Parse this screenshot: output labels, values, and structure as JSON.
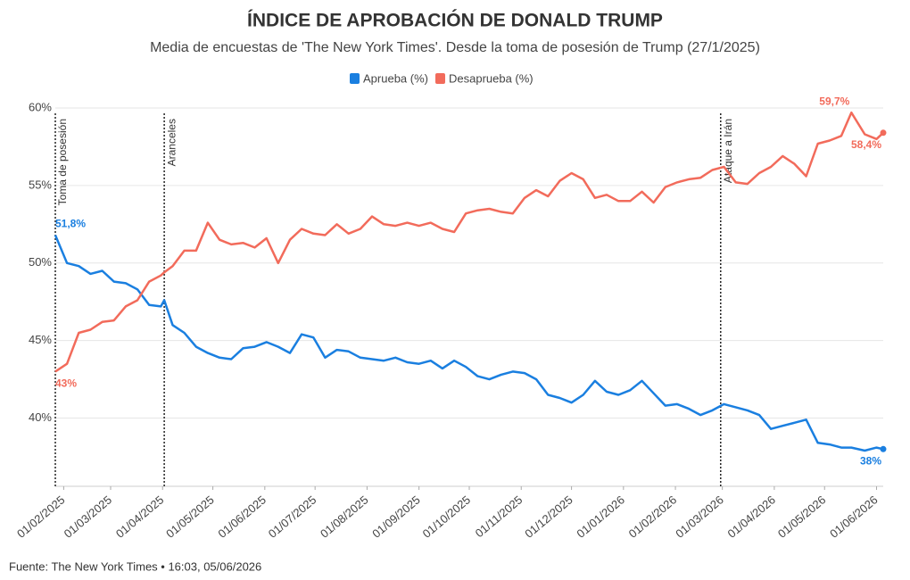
{
  "chart_data": {
    "type": "line",
    "title": "ÍNDICE DE APROBACIÓN DE DONALD TRUMP",
    "subtitle": "Media de encuestas de 'The New York Times'. Desde la toma de posesión de Trump (27/1/2025)",
    "source": "Fuente: The New York Times • 16:03, 05/06/2026",
    "legend": "top",
    "x": [
      "2025-01-27",
      "2025-02-03",
      "2025-02-10",
      "2025-02-17",
      "2025-02-24",
      "2025-03-03",
      "2025-03-10",
      "2025-03-17",
      "2025-03-24",
      "2025-03-31",
      "2025-04-02",
      "2025-04-07",
      "2025-04-14",
      "2025-04-21",
      "2025-04-28",
      "2025-05-05",
      "2025-05-12",
      "2025-05-19",
      "2025-05-26",
      "2025-06-02",
      "2025-06-09",
      "2025-06-16",
      "2025-06-23",
      "2025-06-30",
      "2025-07-07",
      "2025-07-14",
      "2025-07-21",
      "2025-07-28",
      "2025-08-04",
      "2025-08-11",
      "2025-08-18",
      "2025-08-25",
      "2025-09-01",
      "2025-09-08",
      "2025-09-15",
      "2025-09-22",
      "2025-09-29",
      "2025-10-06",
      "2025-10-13",
      "2025-10-20",
      "2025-10-27",
      "2025-11-03",
      "2025-11-10",
      "2025-11-17",
      "2025-11-24",
      "2025-12-01",
      "2025-12-08",
      "2025-12-15",
      "2025-12-22",
      "2025-12-29",
      "2026-01-05",
      "2026-01-12",
      "2026-01-19",
      "2026-01-26",
      "2026-02-02",
      "2026-02-09",
      "2026-02-16",
      "2026-02-23",
      "2026-03-02",
      "2026-03-09",
      "2026-03-16",
      "2026-03-23",
      "2026-03-30",
      "2026-04-06",
      "2026-04-13",
      "2026-04-20",
      "2026-04-27",
      "2026-05-04",
      "2026-05-11",
      "2026-05-17",
      "2026-05-25",
      "2026-06-01",
      "2026-06-05"
    ],
    "series": [
      {
        "name": "Aprueba (%)",
        "color": "#1a7fe0",
        "values": [
          51.8,
          50,
          49.8,
          49.3,
          49.5,
          48.8,
          48.7,
          48.3,
          47.3,
          47.2,
          47.6,
          46,
          45.5,
          44.6,
          44.2,
          43.9,
          43.8,
          44.5,
          44.6,
          44.9,
          44.6,
          44.2,
          45.4,
          45.2,
          43.9,
          44.4,
          44.3,
          43.9,
          43.8,
          43.7,
          43.9,
          43.6,
          43.5,
          43.7,
          43.2,
          43.7,
          43.3,
          42.7,
          42.5,
          42.8,
          43,
          42.9,
          42.5,
          41.5,
          41.3,
          41,
          41.5,
          42.4,
          41.7,
          41.5,
          41.8,
          42.4,
          41.6,
          40.8,
          40.9,
          40.6,
          40.2,
          40.5,
          40.9,
          40.7,
          40.5,
          40.2,
          39.3,
          39.5,
          39.7,
          39.9,
          38.4,
          38.3,
          38.1,
          38.1,
          37.9,
          38.1,
          38
        ],
        "value_labels": {
          "0": "51,8%",
          "72": "38%"
        }
      },
      {
        "name": "Desaprueba (%)",
        "color": "#f26b5b",
        "values": [
          43,
          43.5,
          45.5,
          45.7,
          46.2,
          46.3,
          47.2,
          47.6,
          48.8,
          49.2,
          49.4,
          49.8,
          50.8,
          50.8,
          52.6,
          51.5,
          51.2,
          51.3,
          51,
          51.6,
          50,
          51.5,
          52.2,
          51.9,
          51.8,
          52.5,
          51.9,
          52.2,
          53,
          52.5,
          52.4,
          52.6,
          52.4,
          52.6,
          52.2,
          52,
          53.2,
          53.4,
          53.5,
          53.3,
          53.2,
          54.2,
          54.7,
          54.3,
          55.3,
          55.8,
          55.4,
          54.2,
          54.4,
          54,
          54,
          54.6,
          53.9,
          54.9,
          55.2,
          55.4,
          55.5,
          56,
          56.2,
          55.2,
          55.1,
          55.8,
          56.2,
          56.9,
          56.4,
          55.6,
          57.7,
          57.9,
          58.2,
          59.7,
          58.3,
          58,
          58.4
        ],
        "value_labels": {
          "0": "43%",
          "69": "59,7%",
          "72": "58,4%"
        }
      }
    ],
    "xlim": [
      "2025-01-27",
      "2026-06-05"
    ],
    "xticks": [
      {
        "value": "2025-02-01",
        "label": "01/02/2025"
      },
      {
        "value": "2025-03-01",
        "label": "01/03/2025"
      },
      {
        "value": "2025-04-01",
        "label": "01/04/2025"
      },
      {
        "value": "2025-05-01",
        "label": "01/05/2025"
      },
      {
        "value": "2025-06-01",
        "label": "01/06/2025"
      },
      {
        "value": "2025-07-01",
        "label": "01/07/2025"
      },
      {
        "value": "2025-08-01",
        "label": "01/08/2025"
      },
      {
        "value": "2025-09-01",
        "label": "01/09/2025"
      },
      {
        "value": "2025-10-01",
        "label": "01/10/2025"
      },
      {
        "value": "2025-11-01",
        "label": "01/11/2025"
      },
      {
        "value": "2025-12-01",
        "label": "01/12/2025"
      },
      {
        "value": "2026-01-01",
        "label": "01/01/2026"
      },
      {
        "value": "2026-02-01",
        "label": "01/02/2026"
      },
      {
        "value": "2026-03-01",
        "label": "01/03/2026"
      },
      {
        "value": "2026-04-01",
        "label": "01/04/2026"
      },
      {
        "value": "2026-05-01",
        "label": "01/05/2026"
      },
      {
        "value": "2026-06-01",
        "label": "01/06/2026"
      }
    ],
    "ylim": [
      35.6,
      60
    ],
    "yticks": [
      {
        "value": 40,
        "label": "40%"
      },
      {
        "value": 45,
        "label": "45%"
      },
      {
        "value": 50,
        "label": "50%"
      },
      {
        "value": 55,
        "label": "55%"
      },
      {
        "value": 60,
        "label": "60%"
      }
    ],
    "grid": true,
    "annotations": [
      {
        "x": "2025-01-27",
        "label": "Toma de posesión"
      },
      {
        "x": "2025-04-02",
        "label": "Aranceles"
      },
      {
        "x": "2026-02-28",
        "label": "Ataque a Irán"
      }
    ]
  }
}
